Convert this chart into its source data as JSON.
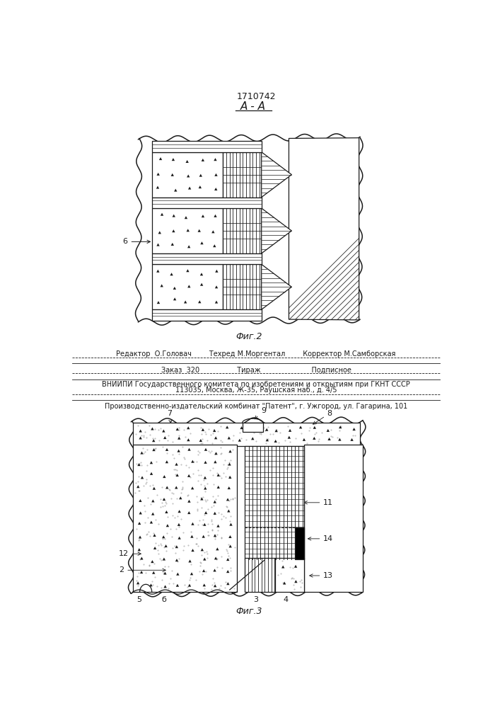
{
  "title": "1710742",
  "fig2_label": "Фиг.2",
  "fig3_label": "Фиг.3",
  "section_label": "А - А",
  "editor_line": "Редактор  О.Головач        Техред М.Моргентал        Корректор М.Самборская",
  "order_line": "Заказ  320                 Тираж                       Подписное",
  "vniipii_line": "ВНИИПИ Государственного комитета по изобретениям и открытиям при ГКНТ СССР",
  "address_line": "113035, Москва, Ж-35, Раушская наб., д. 4/5",
  "plant_line": "Производственно-издательский комбинат \"Патент\", г. Ужгород, ул. Гагарина, 101",
  "line_color": "#1a1a1a"
}
